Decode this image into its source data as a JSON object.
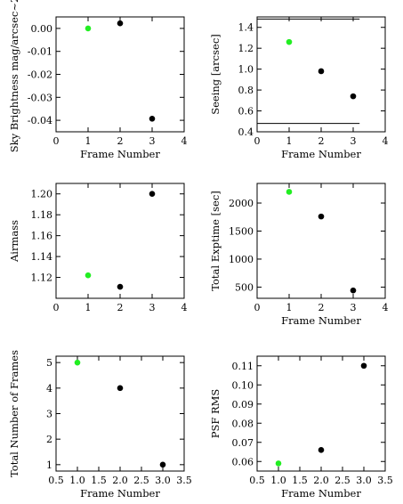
{
  "chart_data": [
    {
      "type": "scatter",
      "xlabel": "Frame Number",
      "ylabel": "Sky Brightness mag/arcsec~2",
      "xlim": [
        0,
        4
      ],
      "ylim": [
        -0.045,
        0.005
      ],
      "xticks": [
        "0",
        "1",
        "2",
        "3",
        "4"
      ],
      "yticks": [
        {
          "v": 0.0,
          "label": "0.00"
        },
        {
          "v": -0.01,
          "label": "-0.01"
        },
        {
          "v": -0.02,
          "label": "-0.02"
        },
        {
          "v": -0.03,
          "label": "-0.03"
        },
        {
          "v": -0.04,
          "label": "-0.04"
        }
      ],
      "points": [
        {
          "x": 1,
          "y": 0.0,
          "color": "#22ee22"
        },
        {
          "x": 2,
          "y": 0.0022,
          "color": "#000000"
        },
        {
          "x": 3,
          "y": -0.0393,
          "color": "#000000"
        }
      ],
      "hlines": []
    },
    {
      "type": "scatter",
      "xlabel": "Frame Number",
      "ylabel": "Seeing [arcsec]",
      "xlim": [
        0,
        4
      ],
      "ylim": [
        0.4,
        1.5
      ],
      "xticks": [
        "0",
        "1",
        "2",
        "3",
        "4"
      ],
      "yticks": [
        {
          "v": 0.4,
          "label": "0.4"
        },
        {
          "v": 0.6,
          "label": "0.6"
        },
        {
          "v": 0.8,
          "label": "0.8"
        },
        {
          "v": 1.0,
          "label": "1.0"
        },
        {
          "v": 1.2,
          "label": "1.2"
        },
        {
          "v": 1.4,
          "label": "1.4"
        }
      ],
      "points": [
        {
          "x": 1,
          "y": 1.26,
          "color": "#22ee22"
        },
        {
          "x": 2,
          "y": 0.98,
          "color": "#000000"
        },
        {
          "x": 3,
          "y": 0.74,
          "color": "#000000"
        }
      ],
      "hlines": [
        {
          "y": 1.48,
          "x0": 0,
          "x1": 3.2
        },
        {
          "y": 0.48,
          "x0": 0,
          "x1": 3.2
        }
      ]
    },
    {
      "type": "scatter",
      "xlabel": "",
      "ylabel": "Airmass",
      "xlim": [
        0,
        4
      ],
      "ylim": [
        1.1,
        1.21
      ],
      "xticks": [
        "0",
        "1",
        "2",
        "3",
        "4"
      ],
      "yticks": [
        {
          "v": 1.12,
          "label": "1.12"
        },
        {
          "v": 1.14,
          "label": "1.14"
        },
        {
          "v": 1.16,
          "label": "1.16"
        },
        {
          "v": 1.18,
          "label": "1.18"
        },
        {
          "v": 1.2,
          "label": "1.20"
        }
      ],
      "points": [
        {
          "x": 1,
          "y": 1.122,
          "color": "#22ee22"
        },
        {
          "x": 2,
          "y": 1.111,
          "color": "#000000"
        },
        {
          "x": 3,
          "y": 1.2,
          "color": "#000000"
        }
      ],
      "hlines": []
    },
    {
      "type": "scatter",
      "xlabel": "Frame Number",
      "ylabel": "Total Exptime [sec]",
      "xlim": [
        0,
        4
      ],
      "ylim": [
        300,
        2350
      ],
      "xticks": [
        "0",
        "1",
        "2",
        "3",
        "4"
      ],
      "yticks": [
        {
          "v": 500,
          "label": "500"
        },
        {
          "v": 1000,
          "label": "1000"
        },
        {
          "v": 1500,
          "label": "1500"
        },
        {
          "v": 2000,
          "label": "2000"
        }
      ],
      "points": [
        {
          "x": 1,
          "y": 2200,
          "color": "#22ee22"
        },
        {
          "x": 2,
          "y": 1760,
          "color": "#000000"
        },
        {
          "x": 3,
          "y": 440,
          "color": "#000000"
        }
      ],
      "hlines": []
    },
    {
      "type": "scatter",
      "xlabel": "Frame Number",
      "ylabel": "Total Number of Frames",
      "xlim": [
        0.5,
        3.5
      ],
      "ylim": [
        0.75,
        5.25
      ],
      "xticks": [
        "0.5",
        "1.0",
        "1.5",
        "2.0",
        "2.5",
        "3.0",
        "3.5"
      ],
      "yticks": [
        {
          "v": 1,
          "label": "1"
        },
        {
          "v": 2,
          "label": "2"
        },
        {
          "v": 3,
          "label": "3"
        },
        {
          "v": 4,
          "label": "4"
        },
        {
          "v": 5,
          "label": "5"
        }
      ],
      "points": [
        {
          "x": 1,
          "y": 5,
          "color": "#22ee22"
        },
        {
          "x": 2,
          "y": 4,
          "color": "#000000"
        },
        {
          "x": 3,
          "y": 1,
          "color": "#000000"
        }
      ],
      "hlines": []
    },
    {
      "type": "scatter",
      "xlabel": "Frame Number",
      "ylabel": "PSF RMS",
      "xlim": [
        0.5,
        3.5
      ],
      "ylim": [
        0.055,
        0.115
      ],
      "xticks": [
        "0.5",
        "1.0",
        "1.5",
        "2.0",
        "2.5",
        "3.0",
        "3.5"
      ],
      "yticks": [
        {
          "v": 0.06,
          "label": "0.06"
        },
        {
          "v": 0.07,
          "label": "0.07"
        },
        {
          "v": 0.08,
          "label": "0.08"
        },
        {
          "v": 0.09,
          "label": "0.09"
        },
        {
          "v": 0.1,
          "label": "0.10"
        },
        {
          "v": 0.11,
          "label": "0.11"
        }
      ],
      "points": [
        {
          "x": 1,
          "y": 0.059,
          "color": "#22ee22"
        },
        {
          "x": 2,
          "y": 0.066,
          "color": "#000000"
        },
        {
          "x": 3,
          "y": 0.11,
          "color": "#000000"
        }
      ],
      "hlines": []
    }
  ]
}
